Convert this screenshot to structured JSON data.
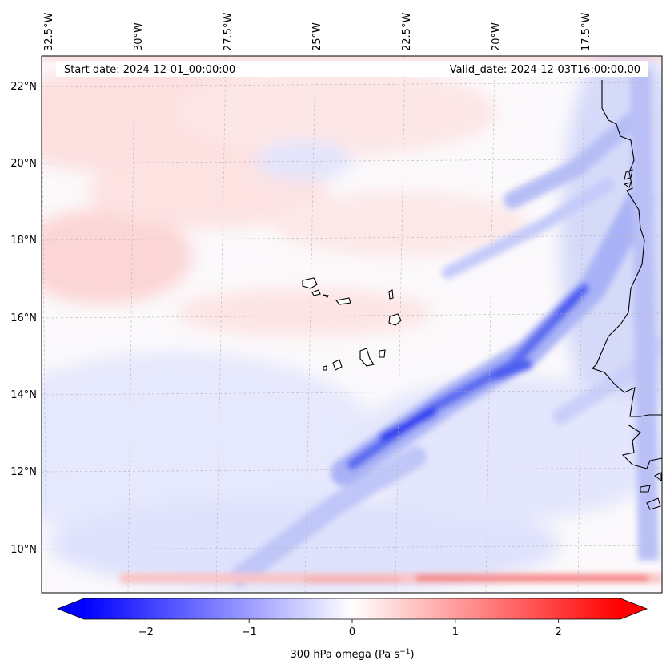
{
  "map": {
    "start_date": "Start date: 2024-12-01_00:00:00",
    "valid_date": "Valid_date: 2024-12-03T16:00:00.00",
    "lon_labels": [
      "32.5°W",
      "30°W",
      "27.5°W",
      "25°W",
      "22.5°W",
      "20°W",
      "17.5°W"
    ],
    "lat_labels": [
      "22°N",
      "20°N",
      "18°N",
      "16°N",
      "14°N",
      "12°N",
      "10°N"
    ],
    "coastline_color": "#000000",
    "gridline_color": "#b0b0b0"
  },
  "colorbar": {
    "label_main": "300 hPa omega (Pa s",
    "label_sup": "−1",
    "label_end": ")",
    "ticks": [
      "−2",
      "−1",
      "0",
      "1",
      "2"
    ],
    "tick_values": [
      -2,
      -1,
      0,
      1,
      2
    ],
    "range": [
      -2.6,
      2.6
    ],
    "colormap": "bwr",
    "color_min": "#0000ff",
    "color_mid": "#ffffff",
    "color_max": "#ff0000"
  }
}
